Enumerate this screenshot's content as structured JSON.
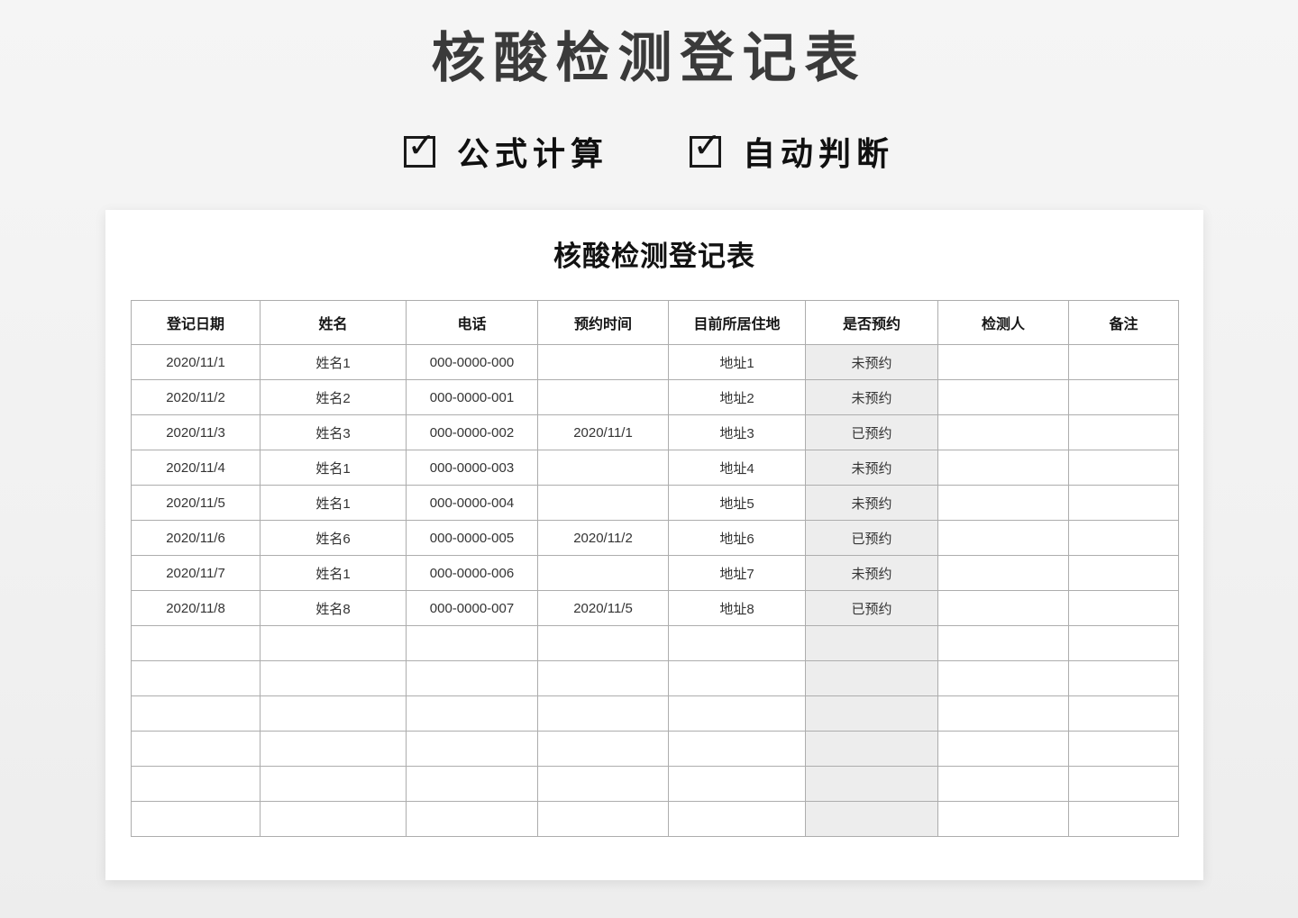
{
  "hero": {
    "title": "核酸检测登记表",
    "check_glyph": "✓",
    "features": [
      {
        "label": "公式计算",
        "checked": true
      },
      {
        "label": "自动判断",
        "checked": true
      }
    ]
  },
  "card": {
    "title": "核酸检测登记表",
    "table": {
      "columns": [
        {
          "key": "register-date",
          "label": "登记日期"
        },
        {
          "key": "name",
          "label": "姓名"
        },
        {
          "key": "phone",
          "label": "电话"
        },
        {
          "key": "appointment-time",
          "label": "预约时间"
        },
        {
          "key": "current-address",
          "label": "目前所居住地"
        },
        {
          "key": "is-booked",
          "label": "是否预约"
        },
        {
          "key": "tester",
          "label": "检测人"
        },
        {
          "key": "remark",
          "label": "备注"
        }
      ],
      "rows": [
        [
          "2020/11/1",
          "姓名1",
          "000-0000-000",
          "",
          "地址1",
          "未预约",
          "",
          ""
        ],
        [
          "2020/11/2",
          "姓名2",
          "000-0000-001",
          "",
          "地址2",
          "未预约",
          "",
          ""
        ],
        [
          "2020/11/3",
          "姓名3",
          "000-0000-002",
          "2020/11/1",
          "地址3",
          "已预约",
          "",
          ""
        ],
        [
          "2020/11/4",
          "姓名1",
          "000-0000-003",
          "",
          "地址4",
          "未预约",
          "",
          ""
        ],
        [
          "2020/11/5",
          "姓名1",
          "000-0000-004",
          "",
          "地址5",
          "未预约",
          "",
          ""
        ],
        [
          "2020/11/6",
          "姓名6",
          "000-0000-005",
          "2020/11/2",
          "地址6",
          "已预约",
          "",
          ""
        ],
        [
          "2020/11/7",
          "姓名1",
          "000-0000-006",
          "",
          "地址7",
          "未预约",
          "",
          ""
        ],
        [
          "2020/11/8",
          "姓名8",
          "000-0000-007",
          "2020/11/5",
          "地址8",
          "已预约",
          "",
          ""
        ]
      ],
      "empty_row_count": 6
    }
  },
  "colors": {
    "booked_column_bg": "#ededed",
    "card_bg": "#ffffff",
    "page_bg": "#f2f2f2"
  }
}
